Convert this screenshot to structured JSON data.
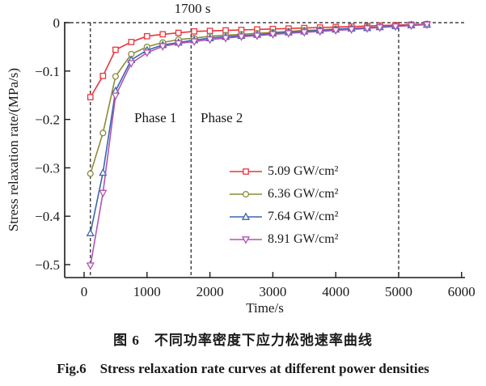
{
  "figure": {
    "annotation_time": "1700 s",
    "phase1_label": "Phase 1",
    "phase2_label": "Phase 2",
    "caption_zh": "图 6　不同功率密度下应力松弛速率曲线",
    "caption_en": "Fig.6　Stress relaxation rate curves at different power densities"
  },
  "chart_data": {
    "type": "line",
    "title": "",
    "xlabel": "Time/s",
    "ylabel": "Stress relaxation rate/(MPa/s)",
    "xlim": [
      -300,
      6050
    ],
    "ylim": [
      -0.53,
      0.005
    ],
    "x_ticks": [
      0,
      1000,
      2000,
      3000,
      4000,
      5000,
      6000
    ],
    "y_ticks": [
      0,
      -0.1,
      -0.2,
      -0.3,
      -0.4,
      -0.5
    ],
    "grid": false,
    "legend_position": "inside center-right",
    "dashed_hline_y": 0,
    "dashed_vlines_x": [
      100,
      1700,
      5000
    ],
    "axis_color": "#1a1a1a",
    "x": [
      100,
      300,
      500,
      750,
      1000,
      1250,
      1500,
      1750,
      2000,
      2250,
      2500,
      2750,
      3000,
      3250,
      3500,
      3750,
      4000,
      4250,
      4500,
      4700,
      4950,
      5200,
      5450
    ],
    "series": [
      {
        "name": "5.09 GW/cm²",
        "color": "#e8363d",
        "marker": "square",
        "values": [
          -0.154,
          -0.11,
          -0.056,
          -0.04,
          -0.028,
          -0.024,
          -0.021,
          -0.018,
          -0.017,
          -0.016,
          -0.015,
          -0.014,
          -0.013,
          -0.012,
          -0.011,
          -0.01,
          -0.009,
          -0.008,
          -0.007,
          -0.006,
          -0.005,
          -0.004,
          -0.003
        ]
      },
      {
        "name": "6.36 GW/cm²",
        "color": "#8a8b39",
        "marker": "circle",
        "values": [
          -0.312,
          -0.228,
          -0.111,
          -0.065,
          -0.05,
          -0.041,
          -0.035,
          -0.032,
          -0.028,
          -0.026,
          -0.024,
          -0.022,
          -0.02,
          -0.018,
          -0.016,
          -0.015,
          -0.013,
          -0.012,
          -0.01,
          -0.009,
          -0.007,
          -0.005,
          -0.004
        ]
      },
      {
        "name": "7.64 GW/cm²",
        "color": "#3a66ad",
        "marker": "triangle-up",
        "values": [
          -0.435,
          -0.31,
          -0.141,
          -0.077,
          -0.057,
          -0.046,
          -0.041,
          -0.036,
          -0.032,
          -0.029,
          -0.027,
          -0.025,
          -0.022,
          -0.02,
          -0.018,
          -0.016,
          -0.014,
          -0.012,
          -0.011,
          -0.009,
          -0.007,
          -0.005,
          -0.004
        ]
      },
      {
        "name": "8.91 GW/cm²",
        "color": "#b055b0",
        "marker": "triangle-down",
        "values": [
          -0.502,
          -0.352,
          -0.151,
          -0.084,
          -0.062,
          -0.049,
          -0.043,
          -0.039,
          -0.035,
          -0.032,
          -0.029,
          -0.027,
          -0.024,
          -0.022,
          -0.02,
          -0.018,
          -0.016,
          -0.014,
          -0.012,
          -0.01,
          -0.008,
          -0.006,
          -0.004
        ]
      }
    ]
  }
}
